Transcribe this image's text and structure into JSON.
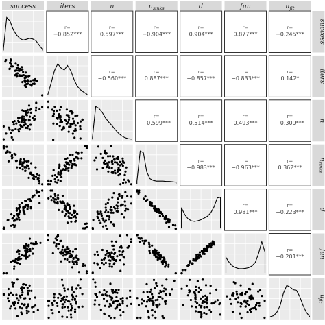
{
  "chart_data": {
    "type": "pairs-matrix",
    "variables": [
      {
        "key": "success",
        "label": "success",
        "sub": ""
      },
      {
        "key": "iters",
        "label": "iters",
        "sub": ""
      },
      {
        "key": "n",
        "label": "n",
        "sub": ""
      },
      {
        "key": "nsinks",
        "label": "n",
        "sub": "sinks"
      },
      {
        "key": "d",
        "label": "d",
        "sub": ""
      },
      {
        "key": "fun",
        "label": "fun",
        "sub": ""
      },
      {
        "key": "ufit",
        "label": "u",
        "sub": "fit"
      }
    ],
    "corr_head": "r=",
    "correlations": [
      {
        "row": 0,
        "col": 1,
        "text": "−0.852***"
      },
      {
        "row": 0,
        "col": 2,
        "text": "0.597***"
      },
      {
        "row": 0,
        "col": 3,
        "text": "−0.904***"
      },
      {
        "row": 0,
        "col": 4,
        "text": "0.904***"
      },
      {
        "row": 0,
        "col": 5,
        "text": "0.877***"
      },
      {
        "row": 0,
        "col": 6,
        "text": "−0.245***"
      },
      {
        "row": 1,
        "col": 2,
        "text": "−0.560***"
      },
      {
        "row": 1,
        "col": 3,
        "text": "0.887***"
      },
      {
        "row": 1,
        "col": 4,
        "text": "−0.857***"
      },
      {
        "row": 1,
        "col": 5,
        "text": "−0.833***"
      },
      {
        "row": 1,
        "col": 6,
        "text": "0.142*"
      },
      {
        "row": 2,
        "col": 3,
        "text": "−0.599***"
      },
      {
        "row": 2,
        "col": 4,
        "text": "0.514***"
      },
      {
        "row": 2,
        "col": 5,
        "text": "0.493***"
      },
      {
        "row": 2,
        "col": 6,
        "text": "−0.309***"
      },
      {
        "row": 3,
        "col": 4,
        "text": "−0.983***"
      },
      {
        "row": 3,
        "col": 5,
        "text": "−0.963***"
      },
      {
        "row": 3,
        "col": 6,
        "text": "0.362***"
      },
      {
        "row": 4,
        "col": 5,
        "text": "0.981***"
      },
      {
        "row": 4,
        "col": 6,
        "text": "−0.223***"
      },
      {
        "row": 5,
        "col": 6,
        "text": "−0.201***"
      }
    ],
    "densities": [
      [
        0.05,
        0.95,
        0.85,
        0.6,
        0.45,
        0.35,
        0.3,
        0.32,
        0.35,
        0.33,
        0.28,
        0.15,
        0.03
      ],
      [
        0.02,
        0.35,
        0.7,
        0.9,
        0.78,
        0.72,
        0.85,
        0.7,
        0.45,
        0.25,
        0.15,
        0.08,
        0.02
      ],
      [
        0.05,
        0.95,
        0.9,
        0.78,
        0.62,
        0.5,
        0.4,
        0.28,
        0.18,
        0.1,
        0.05,
        0.02,
        0.01
      ],
      [
        0.08,
        0.95,
        0.9,
        0.35,
        0.15,
        0.1,
        0.08,
        0.08,
        0.08,
        0.07,
        0.07,
        0.06,
        0.05
      ],
      [
        0.6,
        0.4,
        0.28,
        0.22,
        0.2,
        0.22,
        0.25,
        0.3,
        0.35,
        0.45,
        0.62,
        0.88,
        0.9
      ],
      [
        0.45,
        0.3,
        0.2,
        0.15,
        0.12,
        0.12,
        0.13,
        0.15,
        0.2,
        0.3,
        0.55,
        0.9,
        0.6
      ],
      [
        0.02,
        0.05,
        0.15,
        0.35,
        0.7,
        0.92,
        0.88,
        0.8,
        0.78,
        0.6,
        0.35,
        0.15,
        0.03
      ]
    ]
  }
}
